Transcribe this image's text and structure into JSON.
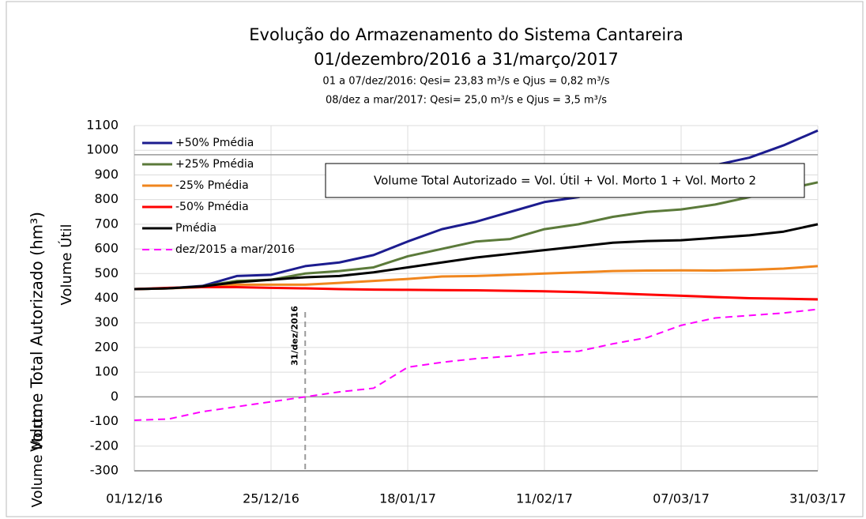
{
  "chart_data": {
    "type": "line",
    "title": "Evolução do Armazenamento do Sistema Cantareira",
    "subtitle": "01/dezembro/2016 a 31/março/2017",
    "notes": [
      {
        "text": "01 a 07/dez/2016: Qesi= 23,83 m³/s e Qjus = 0,82 m³/s",
        "color": "#ff0000"
      },
      {
        "text": "08/dez a mar/2017: Qesi= 25,0 m³/s e Qjus = 3,5 m³/s",
        "color": "#1f3c88"
      }
    ],
    "annotation": "Volume Total Autorizado = Vol. Útil + Vol. Morto 1 + Vol. Morto 2",
    "y_label": "Volume Total Autorizado (hm³)",
    "y_label_upper": "Volume Útil",
    "y_label_lower": {
      "text": "Volume Morto",
      "color": "#ff0000"
    },
    "vline": {
      "x": "31/12/16",
      "label": "31/dez/2016"
    },
    "hlines": [
      0,
      982
    ],
    "x": [
      "01/12/16",
      "07/12/16",
      "13/12/16",
      "19/12/16",
      "25/12/16",
      "31/12/16",
      "06/01/17",
      "12/01/17",
      "18/01/17",
      "24/01/17",
      "30/01/17",
      "05/02/17",
      "11/02/17",
      "17/02/17",
      "23/02/17",
      "01/03/17",
      "07/03/17",
      "13/03/17",
      "19/03/17",
      "25/03/17",
      "31/03/17"
    ],
    "xticks": [
      "01/12/16",
      "25/12/16",
      "18/01/17",
      "11/02/17",
      "07/03/17",
      "31/03/17"
    ],
    "ylim": [
      -300,
      1100
    ],
    "yticks": [
      -300,
      -200,
      -100,
      0,
      100,
      200,
      300,
      400,
      500,
      600,
      700,
      800,
      900,
      1000,
      1100
    ],
    "grid": true,
    "legend": "upper left",
    "series": [
      {
        "name": "+50% Pmédia",
        "color": "#1c1c8f",
        "values": [
          437,
          440,
          450,
          490,
          495,
          530,
          545,
          575,
          630,
          680,
          710,
          750,
          790,
          810,
          850,
          880,
          910,
          940,
          970,
          1020,
          1080
        ]
      },
      {
        "name": "+25% Pmédia",
        "color": "#5b7a3a",
        "values": [
          437,
          440,
          448,
          470,
          475,
          500,
          510,
          525,
          570,
          600,
          630,
          640,
          680,
          700,
          730,
          750,
          760,
          780,
          810,
          840,
          870
        ]
      },
      {
        "name": "-25% Pmédia",
        "color": "#f0861e",
        "values": [
          437,
          440,
          445,
          455,
          455,
          455,
          462,
          470,
          478,
          488,
          490,
          495,
          500,
          505,
          510,
          512,
          513,
          512,
          515,
          520,
          530
        ]
      },
      {
        "name": "-50% Pmédia",
        "color": "#ff0000",
        "values": [
          437,
          442,
          445,
          445,
          442,
          440,
          437,
          435,
          434,
          433,
          432,
          430,
          428,
          425,
          420,
          415,
          410,
          405,
          400,
          398,
          395
        ]
      },
      {
        "name": "Pmédia",
        "color": "#000000",
        "values": [
          437,
          440,
          448,
          465,
          475,
          485,
          490,
          505,
          525,
          545,
          565,
          580,
          595,
          610,
          625,
          632,
          635,
          645,
          655,
          670,
          700
        ]
      },
      {
        "name": "dez/2015 a mar/2016",
        "color": "#ff00ff",
        "dashed": true,
        "values": [
          -95,
          -90,
          -60,
          -40,
          -20,
          0,
          20,
          35,
          120,
          140,
          155,
          165,
          180,
          185,
          215,
          240,
          290,
          320,
          330,
          340,
          355
        ]
      }
    ]
  }
}
